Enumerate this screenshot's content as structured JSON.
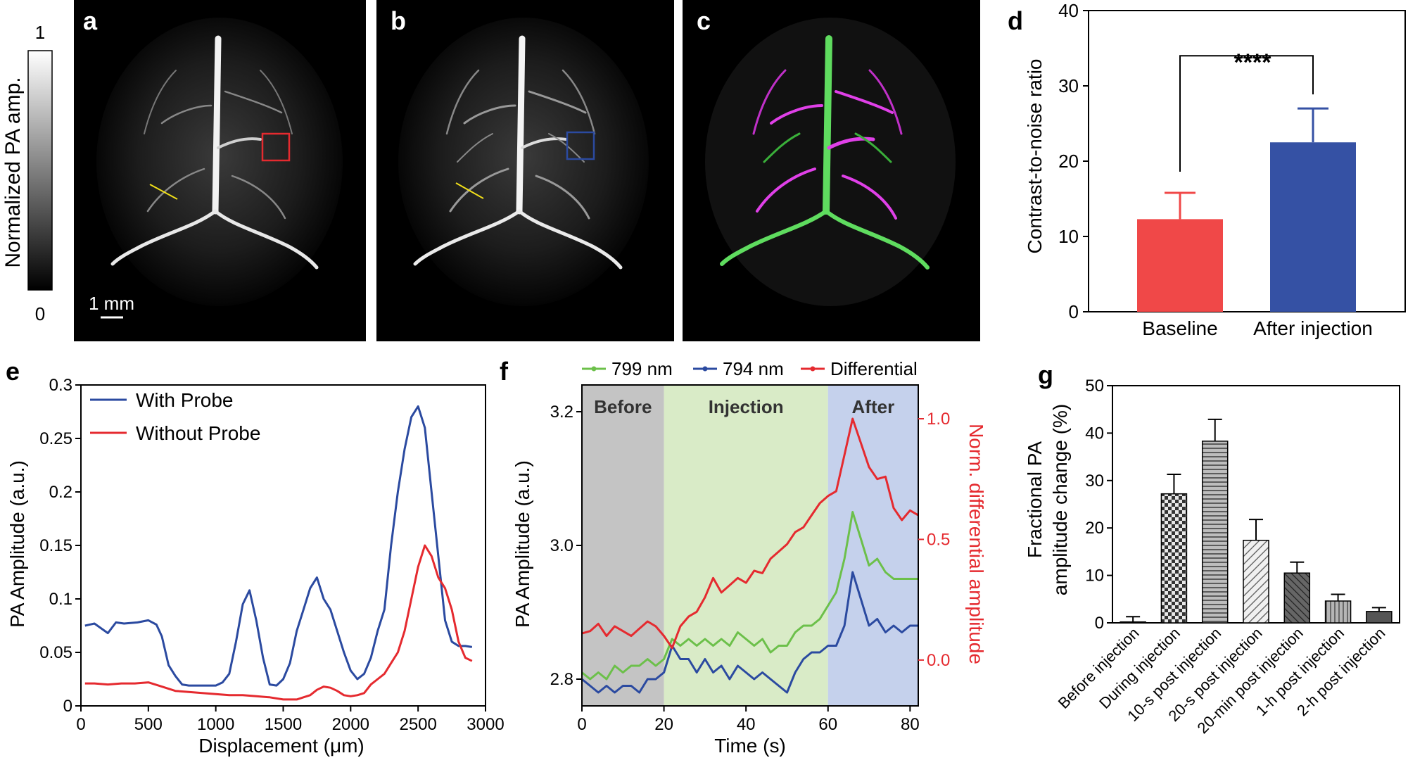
{
  "panel_letters": {
    "a": "a",
    "b": "b",
    "c": "c",
    "d": "d",
    "e": "e",
    "f": "f",
    "g": "g"
  },
  "colors": {
    "red": "#e52a2f",
    "blue": "#2b4aa0",
    "green": "#6cc04a",
    "bar_red": "#f04848",
    "bar_blue": "#3551a4",
    "before_band": "#c4c4c4",
    "injection_band": "#d9ebc7",
    "after_band": "#c5d1ec",
    "yellow_line": "#f2e01a",
    "magenta": "#e040e8"
  },
  "images": {
    "colorbar_label": "Normalized PA amp.",
    "colorbar_max": "1",
    "colorbar_min": "0",
    "scale_bar_label": "1 mm"
  },
  "chart_data": [
    {
      "id": "d",
      "type": "bar",
      "categories": [
        "Baseline",
        "After injection"
      ],
      "values": [
        12.3,
        22.5
      ],
      "errors": [
        3.5,
        4.5
      ],
      "bar_colors": [
        "#f04848",
        "#3551a4"
      ],
      "ylabel": "Contrast-to-noise ratio",
      "ylim": [
        0,
        40
      ],
      "yticks": [
        "0",
        "10",
        "20",
        "30",
        "40"
      ],
      "significance": "****"
    },
    {
      "id": "e",
      "type": "line",
      "xlabel": "Displacement (μm)",
      "ylabel": "PA Amplitude (a.u.)",
      "xlim": [
        0,
        3000
      ],
      "ylim": [
        0,
        0.3
      ],
      "xticks": [
        "0",
        "500",
        "1000",
        "1500",
        "2000",
        "2500",
        "3000"
      ],
      "yticks": [
        "0",
        "0.05",
        "0.1",
        "0.15",
        "0.2",
        "0.25",
        "0.3"
      ],
      "legend": "top-left",
      "series": [
        {
          "name": "With Probe",
          "color": "#2b4aa0",
          "x": [
            30,
            100,
            200,
            260,
            320,
            420,
            500,
            560,
            600,
            650,
            700,
            750,
            800,
            900,
            1000,
            1050,
            1100,
            1150,
            1200,
            1250,
            1300,
            1350,
            1400,
            1450,
            1500,
            1550,
            1600,
            1650,
            1700,
            1750,
            1800,
            1850,
            1900,
            1950,
            2000,
            2050,
            2100,
            2150,
            2200,
            2250,
            2300,
            2350,
            2400,
            2450,
            2500,
            2550,
            2600,
            2650,
            2700,
            2750,
            2800,
            2850,
            2900
          ],
          "y": [
            0.075,
            0.077,
            0.068,
            0.078,
            0.077,
            0.078,
            0.08,
            0.076,
            0.065,
            0.038,
            0.028,
            0.02,
            0.019,
            0.019,
            0.019,
            0.022,
            0.03,
            0.06,
            0.095,
            0.108,
            0.08,
            0.045,
            0.02,
            0.019,
            0.025,
            0.04,
            0.07,
            0.09,
            0.11,
            0.12,
            0.1,
            0.09,
            0.07,
            0.05,
            0.033,
            0.025,
            0.03,
            0.045,
            0.07,
            0.09,
            0.15,
            0.2,
            0.24,
            0.27,
            0.28,
            0.26,
            0.2,
            0.14,
            0.08,
            0.06,
            0.056,
            0.056,
            0.055
          ]
        },
        {
          "name": "Without Probe",
          "color": "#e52a2f",
          "x": [
            30,
            100,
            200,
            300,
            400,
            500,
            600,
            700,
            800,
            900,
            1000,
            1100,
            1200,
            1300,
            1400,
            1500,
            1600,
            1650,
            1700,
            1750,
            1800,
            1850,
            1900,
            1950,
            2000,
            2050,
            2100,
            2150,
            2200,
            2250,
            2300,
            2350,
            2400,
            2450,
            2500,
            2550,
            2600,
            2650,
            2700,
            2750,
            2800,
            2850,
            2900
          ],
          "y": [
            0.021,
            0.021,
            0.02,
            0.021,
            0.021,
            0.022,
            0.018,
            0.014,
            0.013,
            0.012,
            0.011,
            0.01,
            0.01,
            0.009,
            0.008,
            0.006,
            0.006,
            0.008,
            0.01,
            0.015,
            0.018,
            0.017,
            0.014,
            0.01,
            0.009,
            0.01,
            0.012,
            0.02,
            0.025,
            0.03,
            0.04,
            0.05,
            0.07,
            0.1,
            0.13,
            0.15,
            0.14,
            0.12,
            0.11,
            0.09,
            0.06,
            0.045,
            0.042
          ]
        }
      ]
    },
    {
      "id": "f",
      "type": "line",
      "xlabel": "Time (s)",
      "ylabel": "PA Amplitude (a.u.)",
      "ylabel_right": "Norm. differential amplitude",
      "xlim": [
        0,
        82
      ],
      "ylim": [
        2.76,
        3.24
      ],
      "ylim_right": [
        -0.19,
        1.14
      ],
      "xticks": [
        "0",
        "20",
        "40",
        "60",
        "80"
      ],
      "yticks": [
        "2.8",
        "3.0",
        "3.2"
      ],
      "yticks_right": [
        "0.0",
        "0.5",
        "1.0"
      ],
      "phases": [
        {
          "label": "Before",
          "start": 0,
          "end": 20
        },
        {
          "label": "Injection",
          "start": 20,
          "end": 60
        },
        {
          "label": "After",
          "start": 60,
          "end": 82
        }
      ],
      "legend": "top",
      "series": [
        {
          "name": "799 nm",
          "color": "#6cc04a",
          "axis": "left",
          "x": [
            0,
            2,
            4,
            6,
            8,
            10,
            12,
            14,
            16,
            18,
            20,
            22,
            24,
            26,
            28,
            30,
            32,
            34,
            36,
            38,
            40,
            42,
            44,
            46,
            48,
            50,
            52,
            54,
            56,
            58,
            60,
            62,
            64,
            66,
            68,
            70,
            72,
            74,
            76,
            78,
            80,
            82
          ],
          "y": [
            2.81,
            2.8,
            2.81,
            2.8,
            2.82,
            2.81,
            2.82,
            2.82,
            2.83,
            2.82,
            2.83,
            2.86,
            2.85,
            2.86,
            2.85,
            2.86,
            2.85,
            2.86,
            2.85,
            2.87,
            2.86,
            2.85,
            2.86,
            2.84,
            2.85,
            2.85,
            2.87,
            2.88,
            2.88,
            2.89,
            2.91,
            2.93,
            2.98,
            3.05,
            3.01,
            2.97,
            2.98,
            2.96,
            2.95,
            2.95,
            2.95,
            2.95
          ]
        },
        {
          "name": "794 nm",
          "color": "#2b4aa0",
          "axis": "left",
          "x": [
            0,
            2,
            4,
            6,
            8,
            10,
            12,
            14,
            16,
            18,
            20,
            22,
            24,
            26,
            28,
            30,
            32,
            34,
            36,
            38,
            40,
            42,
            44,
            46,
            48,
            50,
            52,
            54,
            56,
            58,
            60,
            62,
            64,
            66,
            68,
            70,
            72,
            74,
            76,
            78,
            80,
            82
          ],
          "y": [
            2.8,
            2.79,
            2.78,
            2.79,
            2.78,
            2.79,
            2.79,
            2.78,
            2.8,
            2.8,
            2.81,
            2.85,
            2.83,
            2.83,
            2.81,
            2.83,
            2.81,
            2.82,
            2.8,
            2.82,
            2.81,
            2.8,
            2.81,
            2.8,
            2.79,
            2.78,
            2.81,
            2.83,
            2.84,
            2.84,
            2.85,
            2.85,
            2.88,
            2.96,
            2.92,
            2.88,
            2.89,
            2.87,
            2.88,
            2.87,
            2.88,
            2.88
          ]
        },
        {
          "name": "Differential",
          "color": "#e52a2f",
          "axis": "right",
          "x": [
            0,
            2,
            4,
            6,
            8,
            10,
            12,
            14,
            16,
            18,
            20,
            22,
            24,
            26,
            28,
            30,
            32,
            34,
            36,
            38,
            40,
            42,
            44,
            46,
            48,
            50,
            52,
            54,
            56,
            58,
            60,
            62,
            64,
            66,
            68,
            70,
            72,
            74,
            76,
            78,
            80,
            82
          ],
          "y": [
            0.11,
            0.12,
            0.15,
            0.1,
            0.14,
            0.12,
            0.1,
            0.13,
            0.16,
            0.14,
            0.1,
            0.05,
            0.14,
            0.18,
            0.2,
            0.26,
            0.34,
            0.28,
            0.31,
            0.34,
            0.32,
            0.37,
            0.36,
            0.42,
            0.45,
            0.48,
            0.53,
            0.55,
            0.6,
            0.65,
            0.68,
            0.7,
            0.85,
            1.0,
            0.9,
            0.8,
            0.75,
            0.76,
            0.63,
            0.58,
            0.62,
            0.6
          ]
        }
      ]
    },
    {
      "id": "g",
      "type": "bar",
      "categories": [
        "Before injection",
        "During injection",
        "10-s post injection",
        "20-s post injection",
        "20-min post injection",
        "1-h post injection",
        "2-h post injection"
      ],
      "values": [
        0.2,
        27.2,
        38.3,
        17.4,
        10.5,
        4.6,
        2.4
      ],
      "errors": [
        1.1,
        4.1,
        4.6,
        4.4,
        2.3,
        1.4,
        0.8
      ],
      "patterns": [
        "solid",
        "checker",
        "horizontal",
        "diagonal",
        "diagonal-dark",
        "vertical",
        "solid-dark"
      ],
      "ylabel_lines": [
        "Fractional PA",
        "amplitude change (%)"
      ],
      "ylim": [
        0,
        50
      ],
      "yticks": [
        "0",
        "10",
        "20",
        "30",
        "40",
        "50"
      ]
    }
  ]
}
